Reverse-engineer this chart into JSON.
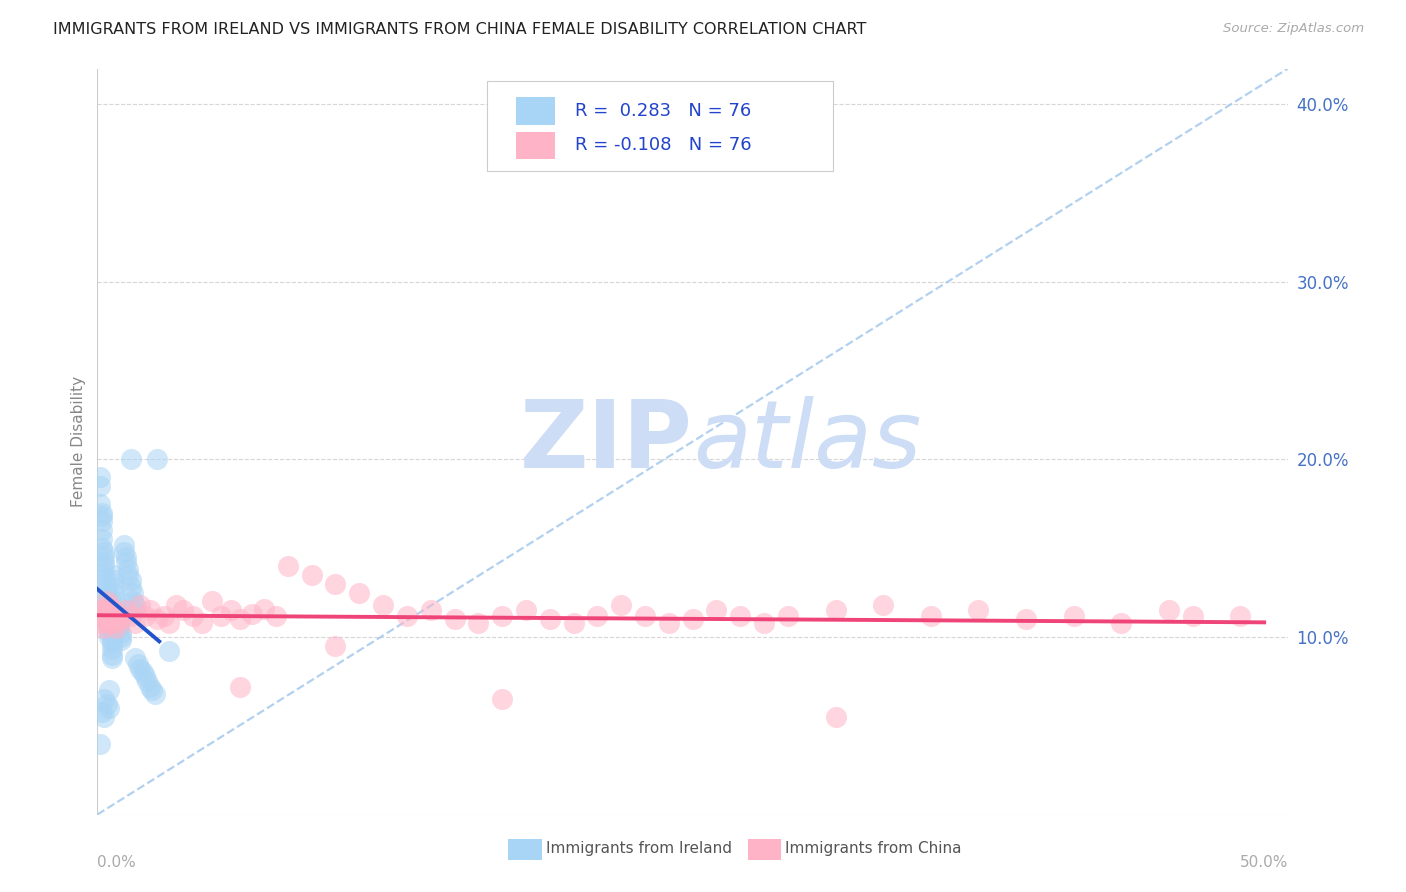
{
  "title": "IMMIGRANTS FROM IRELAND VS IMMIGRANTS FROM CHINA FEMALE DISABILITY CORRELATION CHART",
  "source": "Source: ZipAtlas.com",
  "ylabel": "Female Disability",
  "xlim": [
    0.0,
    0.5
  ],
  "ylim": [
    0.0,
    0.42
  ],
  "yticks_right": [
    0.1,
    0.2,
    0.3,
    0.4
  ],
  "yticklabels_right": [
    "10.0%",
    "20.0%",
    "30.0%",
    "40.0%"
  ],
  "legend_label1": "Immigrants from Ireland",
  "legend_label2": "Immigrants from China",
  "r1": 0.283,
  "n1": 76,
  "r2": -0.108,
  "n2": 76,
  "color_ireland": "#a8d4f5",
  "color_china": "#ffb3c6",
  "trendline_color_ireland": "#2255cc",
  "trendline_color_china": "#ee4477",
  "dashed_line_color": "#aaccee",
  "watermark_color": "#ccddf5",
  "background_color": "#ffffff",
  "grid_color": "#cccccc",
  "title_color": "#222222",
  "right_tick_color": "#4472c4",
  "bottom_tick_color": "#aaaaaa",
  "ireland_x": [
    0.001,
    0.001,
    0.001,
    0.002,
    0.002,
    0.002,
    0.002,
    0.002,
    0.002,
    0.003,
    0.003,
    0.003,
    0.003,
    0.003,
    0.003,
    0.003,
    0.004,
    0.004,
    0.004,
    0.004,
    0.004,
    0.004,
    0.005,
    0.005,
    0.005,
    0.005,
    0.006,
    0.006,
    0.006,
    0.006,
    0.006,
    0.007,
    0.007,
    0.007,
    0.007,
    0.008,
    0.008,
    0.008,
    0.008,
    0.009,
    0.009,
    0.009,
    0.01,
    0.01,
    0.01,
    0.011,
    0.011,
    0.012,
    0.012,
    0.013,
    0.013,
    0.014,
    0.014,
    0.015,
    0.015,
    0.016,
    0.016,
    0.017,
    0.018,
    0.019,
    0.02,
    0.021,
    0.022,
    0.023,
    0.024,
    0.016,
    0.014,
    0.03,
    0.005,
    0.003,
    0.004,
    0.005,
    0.002,
    0.003,
    0.025,
    0.001
  ],
  "ireland_y": [
    0.19,
    0.185,
    0.175,
    0.17,
    0.168,
    0.165,
    0.16,
    0.155,
    0.15,
    0.148,
    0.145,
    0.142,
    0.14,
    0.136,
    0.133,
    0.13,
    0.128,
    0.125,
    0.122,
    0.118,
    0.115,
    0.112,
    0.108,
    0.106,
    0.103,
    0.1,
    0.098,
    0.096,
    0.093,
    0.09,
    0.088,
    0.135,
    0.132,
    0.128,
    0.125,
    0.12,
    0.118,
    0.115,
    0.112,
    0.11,
    0.108,
    0.105,
    0.102,
    0.1,
    0.098,
    0.152,
    0.148,
    0.145,
    0.142,
    0.138,
    0.135,
    0.132,
    0.128,
    0.125,
    0.12,
    0.118,
    0.115,
    0.085,
    0.082,
    0.08,
    0.078,
    0.075,
    0.072,
    0.07,
    0.068,
    0.088,
    0.2,
    0.092,
    0.07,
    0.065,
    0.062,
    0.06,
    0.058,
    0.055,
    0.2,
    0.04
  ],
  "china_x": [
    0.001,
    0.002,
    0.002,
    0.003,
    0.003,
    0.003,
    0.004,
    0.004,
    0.004,
    0.005,
    0.005,
    0.005,
    0.006,
    0.006,
    0.007,
    0.007,
    0.008,
    0.008,
    0.009,
    0.01,
    0.012,
    0.014,
    0.016,
    0.018,
    0.02,
    0.022,
    0.025,
    0.028,
    0.03,
    0.033,
    0.036,
    0.04,
    0.044,
    0.048,
    0.052,
    0.056,
    0.06,
    0.065,
    0.07,
    0.075,
    0.08,
    0.09,
    0.1,
    0.11,
    0.12,
    0.13,
    0.14,
    0.15,
    0.16,
    0.17,
    0.18,
    0.19,
    0.2,
    0.21,
    0.22,
    0.23,
    0.24,
    0.25,
    0.26,
    0.27,
    0.28,
    0.29,
    0.31,
    0.33,
    0.35,
    0.37,
    0.39,
    0.41,
    0.43,
    0.45,
    0.46,
    0.06,
    0.1,
    0.17,
    0.31,
    0.48
  ],
  "china_y": [
    0.115,
    0.112,
    0.108,
    0.115,
    0.11,
    0.105,
    0.12,
    0.112,
    0.108,
    0.118,
    0.115,
    0.11,
    0.112,
    0.108,
    0.115,
    0.11,
    0.108,
    0.105,
    0.112,
    0.11,
    0.115,
    0.112,
    0.108,
    0.118,
    0.112,
    0.115,
    0.11,
    0.112,
    0.108,
    0.118,
    0.115,
    0.112,
    0.108,
    0.12,
    0.112,
    0.115,
    0.11,
    0.113,
    0.116,
    0.112,
    0.14,
    0.135,
    0.13,
    0.125,
    0.118,
    0.112,
    0.115,
    0.11,
    0.108,
    0.112,
    0.115,
    0.11,
    0.108,
    0.112,
    0.118,
    0.112,
    0.108,
    0.11,
    0.115,
    0.112,
    0.108,
    0.112,
    0.115,
    0.118,
    0.112,
    0.115,
    0.11,
    0.112,
    0.108,
    0.115,
    0.112,
    0.072,
    0.095,
    0.065,
    0.055,
    0.112
  ]
}
